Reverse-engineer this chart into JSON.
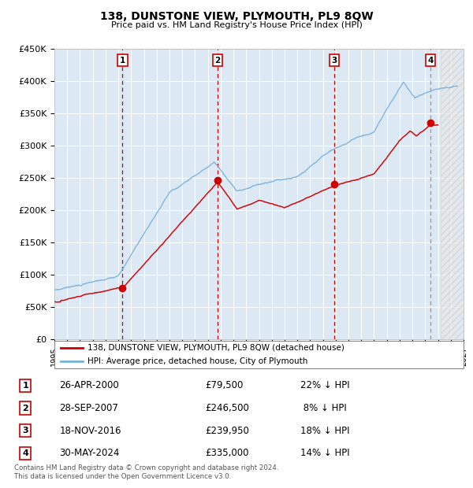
{
  "title": "138, DUNSTONE VIEW, PLYMOUTH, PL9 8QW",
  "subtitle": "Price paid vs. HM Land Registry's House Price Index (HPI)",
  "background_color": "#dce9f5",
  "grid_color": "#ffffff",
  "hpi_line_color": "#7ab0d8",
  "price_line_color": "#cc0000",
  "sale_marker_color": "#cc0000",
  "transactions": [
    {
      "label": "1",
      "date": "26-APR-2000",
      "year": 2000.32,
      "price": 79500
    },
    {
      "label": "2",
      "date": "28-SEP-2007",
      "year": 2007.75,
      "price": 246500
    },
    {
      "label": "3",
      "date": "18-NOV-2016",
      "year": 2016.88,
      "price": 239950
    },
    {
      "label": "4",
      "date": "30-MAY-2024",
      "year": 2024.41,
      "price": 335000
    }
  ],
  "legend_entries": [
    {
      "label": "138, DUNSTONE VIEW, PLYMOUTH, PL9 8QW (detached house)",
      "color": "#cc0000"
    },
    {
      "label": "HPI: Average price, detached house, City of Plymouth",
      "color": "#7ab0d8"
    }
  ],
  "table_rows": [
    {
      "num": "1",
      "date": "26-APR-2000",
      "price": "£79,500",
      "note": "22% ↓ HPI"
    },
    {
      "num": "2",
      "date": "28-SEP-2007",
      "price": "£246,500",
      "note": " 8% ↓ HPI"
    },
    {
      "num": "3",
      "date": "18-NOV-2016",
      "price": "£239,950",
      "note": "18% ↓ HPI"
    },
    {
      "num": "4",
      "date": "30-MAY-2024",
      "price": "£335,000",
      "note": "14% ↓ HPI"
    }
  ],
  "footnote": "Contains HM Land Registry data © Crown copyright and database right 2024.\nThis data is licensed under the Open Government Licence v3.0."
}
